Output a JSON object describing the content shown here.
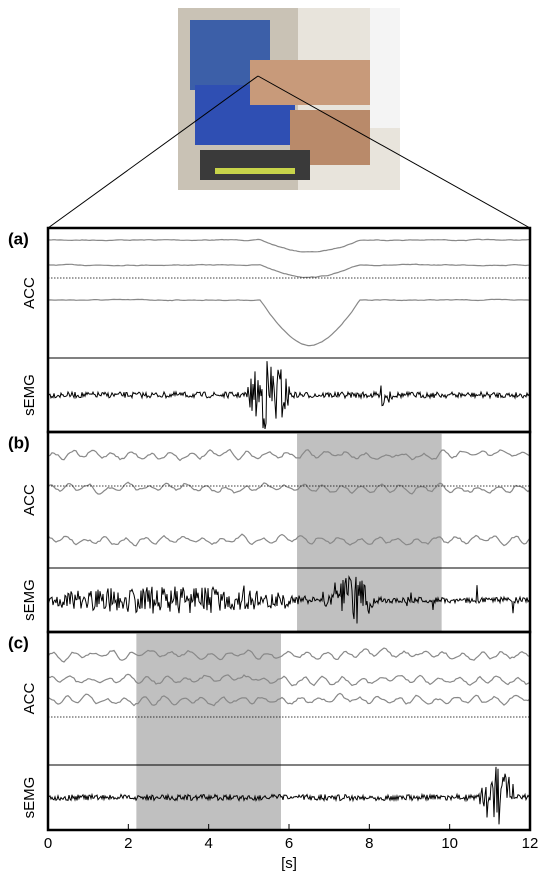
{
  "panels": [
    {
      "label": "(a)",
      "channels": [
        "ACC",
        "sEMG"
      ]
    },
    {
      "label": "(b)",
      "channels": [
        "ACC",
        "sEMG"
      ],
      "shade": [
        6.2,
        9.8
      ]
    },
    {
      "label": "(c)",
      "channels": [
        "ACC",
        "sEMG"
      ],
      "shade": [
        2.2,
        5.8
      ]
    }
  ],
  "x_axis": {
    "label": "[s]",
    "lim": [
      0,
      12
    ],
    "ticks": [
      0,
      2,
      4,
      6,
      8,
      10,
      12
    ]
  }
}
